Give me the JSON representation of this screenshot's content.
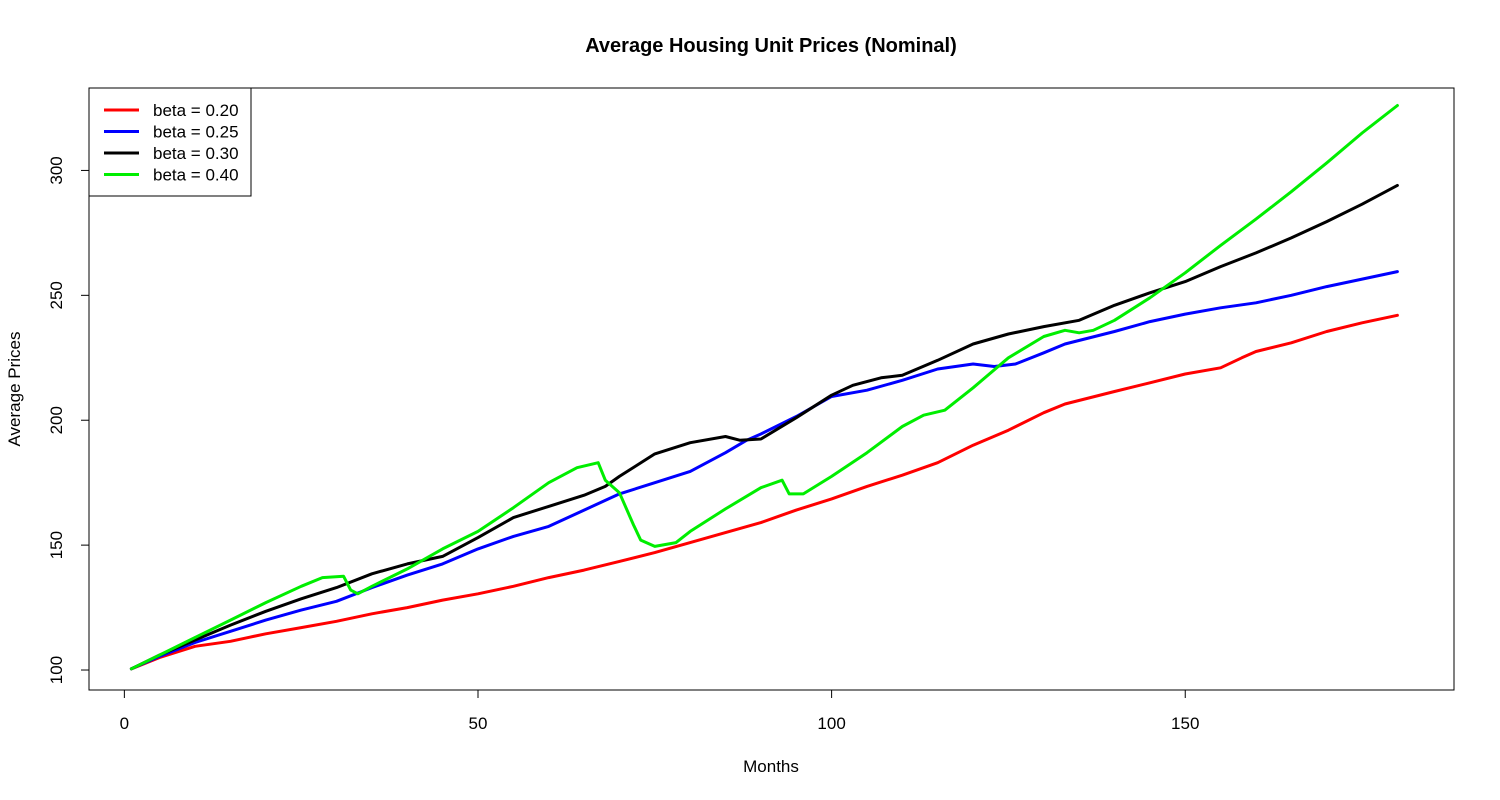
{
  "chart_data": {
    "type": "line",
    "title": "Average Housing Unit Prices (Nominal)",
    "xlabel": "Months",
    "ylabel": "Average Prices",
    "xlim": [
      -5,
      188
    ],
    "ylim": [
      92,
      333
    ],
    "x_ticks": [
      0,
      50,
      100,
      150
    ],
    "y_ticks": [
      100,
      150,
      200,
      250,
      300
    ],
    "grid": false,
    "legend_position": "top-left",
    "series": [
      {
        "name": "beta = 0.20",
        "color": "#ff0000",
        "points": [
          [
            1,
            100.5
          ],
          [
            5,
            105
          ],
          [
            10,
            109.5
          ],
          [
            15,
            111.5
          ],
          [
            20,
            114.5
          ],
          [
            25,
            117
          ],
          [
            30,
            119.5
          ],
          [
            35,
            122.5
          ],
          [
            40,
            125
          ],
          [
            45,
            128
          ],
          [
            50,
            130.5
          ],
          [
            55,
            133.5
          ],
          [
            60,
            137
          ],
          [
            65,
            140
          ],
          [
            70,
            143.5
          ],
          [
            75,
            147
          ],
          [
            80,
            151
          ],
          [
            85,
            155
          ],
          [
            90,
            159
          ],
          [
            93,
            162
          ],
          [
            95,
            164
          ],
          [
            100,
            168.5
          ],
          [
            105,
            173.5
          ],
          [
            110,
            178
          ],
          [
            115,
            183
          ],
          [
            120,
            190
          ],
          [
            125,
            196
          ],
          [
            130,
            203
          ],
          [
            133,
            206.5
          ],
          [
            140,
            211.5
          ],
          [
            145,
            215
          ],
          [
            150,
            218.5
          ],
          [
            155,
            221
          ],
          [
            158,
            225
          ],
          [
            160,
            227.5
          ],
          [
            165,
            231
          ],
          [
            170,
            235.5
          ],
          [
            175,
            239
          ],
          [
            180,
            242
          ]
        ]
      },
      {
        "name": "beta = 0.25",
        "color": "#0000ff",
        "points": [
          [
            1,
            100.5
          ],
          [
            5,
            105.5
          ],
          [
            10,
            111
          ],
          [
            15,
            115.5
          ],
          [
            20,
            120
          ],
          [
            25,
            124
          ],
          [
            30,
            127.5
          ],
          [
            35,
            133
          ],
          [
            40,
            138
          ],
          [
            45,
            142.5
          ],
          [
            50,
            148.5
          ],
          [
            55,
            153.5
          ],
          [
            60,
            157.5
          ],
          [
            65,
            164
          ],
          [
            70,
            170.5
          ],
          [
            75,
            175
          ],
          [
            80,
            179.5
          ],
          [
            85,
            187
          ],
          [
            88,
            192
          ],
          [
            90,
            194.5
          ],
          [
            95,
            201.5
          ],
          [
            100,
            209.5
          ],
          [
            105,
            212
          ],
          [
            110,
            216
          ],
          [
            115,
            220.5
          ],
          [
            120,
            222.5
          ],
          [
            123,
            221.5
          ],
          [
            126,
            222.5
          ],
          [
            130,
            227
          ],
          [
            133,
            230.5
          ],
          [
            140,
            235.5
          ],
          [
            145,
            239.5
          ],
          [
            150,
            242.5
          ],
          [
            155,
            245
          ],
          [
            160,
            247
          ],
          [
            165,
            250
          ],
          [
            170,
            253.5
          ],
          [
            175,
            256.5
          ],
          [
            180,
            259.5
          ]
        ]
      },
      {
        "name": "beta = 0.30",
        "color": "#000000",
        "points": [
          [
            1,
            100.5
          ],
          [
            5,
            106
          ],
          [
            10,
            112
          ],
          [
            15,
            118
          ],
          [
            20,
            123.5
          ],
          [
            25,
            128.5
          ],
          [
            30,
            133
          ],
          [
            35,
            138.5
          ],
          [
            40,
            142.5
          ],
          [
            45,
            145.5
          ],
          [
            50,
            153
          ],
          [
            55,
            161
          ],
          [
            60,
            165.5
          ],
          [
            65,
            170
          ],
          [
            68,
            173.5
          ],
          [
            70,
            177.5
          ],
          [
            75,
            186.5
          ],
          [
            80,
            191
          ],
          [
            85,
            193.5
          ],
          [
            87,
            192
          ],
          [
            90,
            192.5
          ],
          [
            95,
            201
          ],
          [
            100,
            210
          ],
          [
            103,
            214
          ],
          [
            107,
            217
          ],
          [
            110,
            218
          ],
          [
            115,
            224
          ],
          [
            120,
            230.5
          ],
          [
            125,
            234.5
          ],
          [
            130,
            237.5
          ],
          [
            135,
            240
          ],
          [
            140,
            246
          ],
          [
            145,
            251
          ],
          [
            150,
            255.5
          ],
          [
            155,
            261.5
          ],
          [
            160,
            267
          ],
          [
            165,
            273
          ],
          [
            170,
            279.5
          ],
          [
            175,
            286.5
          ],
          [
            180,
            294
          ]
        ]
      },
      {
        "name": "beta = 0.40",
        "color": "#00ee00",
        "points": [
          [
            1,
            100.5
          ],
          [
            5,
            106
          ],
          [
            10,
            113
          ],
          [
            15,
            120
          ],
          [
            20,
            127
          ],
          [
            25,
            133.5
          ],
          [
            28,
            137
          ],
          [
            31,
            137.5
          ],
          [
            32,
            132
          ],
          [
            33,
            130.5
          ],
          [
            35,
            133.5
          ],
          [
            40,
            140.5
          ],
          [
            45,
            148.5
          ],
          [
            50,
            155.5
          ],
          [
            55,
            165
          ],
          [
            60,
            175
          ],
          [
            64,
            181
          ],
          [
            67,
            183
          ],
          [
            68,
            176
          ],
          [
            70,
            171
          ],
          [
            72,
            158
          ],
          [
            73,
            152
          ],
          [
            75,
            149.5
          ],
          [
            78,
            151
          ],
          [
            80,
            155.5
          ],
          [
            85,
            164.5
          ],
          [
            90,
            173
          ],
          [
            93,
            176
          ],
          [
            94,
            170.5
          ],
          [
            96,
            170.5
          ],
          [
            100,
            177.5
          ],
          [
            105,
            187
          ],
          [
            110,
            197.5
          ],
          [
            113,
            202
          ],
          [
            116,
            204
          ],
          [
            120,
            213
          ],
          [
            125,
            225
          ],
          [
            130,
            233.5
          ],
          [
            133,
            236
          ],
          [
            135,
            235
          ],
          [
            137,
            236
          ],
          [
            140,
            240
          ],
          [
            145,
            249
          ],
          [
            150,
            259
          ],
          [
            155,
            270
          ],
          [
            160,
            280.5
          ],
          [
            165,
            291.5
          ],
          [
            170,
            303
          ],
          [
            175,
            315
          ],
          [
            180,
            326
          ]
        ]
      }
    ]
  }
}
